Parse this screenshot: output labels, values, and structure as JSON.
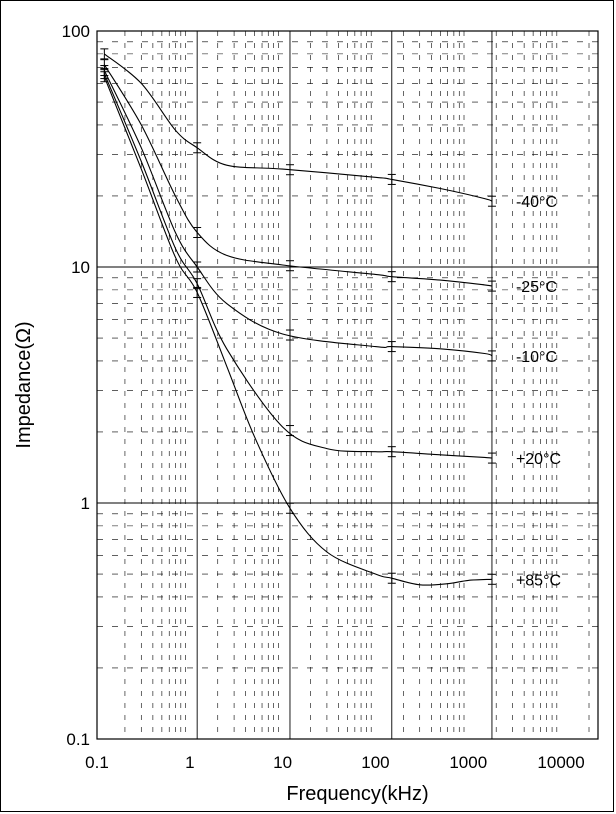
{
  "chart_data": {
    "type": "line",
    "title": "",
    "xlabel": "Frequency(kHz)",
    "ylabel": "Impedance(Ω)",
    "xscale": "log",
    "yscale": "log",
    "xlim": [
      0.1,
      25000
    ],
    "ylim": [
      0.1,
      100
    ],
    "x_ticks": [
      {
        "value": 0.1,
        "label": "0.1"
      },
      {
        "value": 1,
        "label": "1"
      },
      {
        "value": 10,
        "label": "10"
      },
      {
        "value": 100,
        "label": "100"
      },
      {
        "value": 1000,
        "label": "1000"
      },
      {
        "value": 10000,
        "label": "10000"
      }
    ],
    "y_ticks": [
      {
        "value": 0.1,
        "label": "0.1"
      },
      {
        "value": 1,
        "label": "1"
      },
      {
        "value": 10,
        "label": "10"
      },
      {
        "value": 100,
        "label": "100"
      }
    ],
    "grid": "dashed minor, solid major",
    "series": [
      {
        "name": "-40°C",
        "x": [
          0.12,
          0.3,
          0.7,
          1.2,
          2.5,
          10,
          100,
          150,
          500,
          1500,
          1800
        ],
        "y": [
          80,
          60,
          38,
          32,
          27,
          26,
          24,
          23.5,
          21.5,
          19.5,
          19
        ]
      },
      {
        "name": "-25°C",
        "x": [
          0.12,
          0.3,
          0.7,
          1.2,
          2.5,
          10,
          100,
          150,
          500,
          1500,
          1800
        ],
        "y": [
          72,
          40,
          20,
          14,
          11.2,
          10.2,
          9.3,
          9.1,
          8.8,
          8.4,
          8.3
        ]
      },
      {
        "name": "-10°C",
        "x": [
          0.12,
          0.3,
          0.7,
          1.2,
          2.5,
          10,
          100,
          150,
          500,
          1500,
          1800
        ],
        "y": [
          68,
          32,
          14,
          10,
          7,
          5.2,
          4.6,
          4.6,
          4.5,
          4.3,
          4.2
        ]
      },
      {
        "name": "+20°C",
        "x": [
          0.12,
          0.3,
          0.7,
          1.2,
          2.5,
          10,
          30,
          100,
          150,
          500,
          1500,
          1800
        ],
        "y": [
          66,
          28,
          12,
          8.5,
          4.5,
          2.1,
          1.7,
          1.65,
          1.65,
          1.6,
          1.56,
          1.55
        ]
      },
      {
        "name": "+85°C",
        "x": [
          0.12,
          0.3,
          0.7,
          1.2,
          2.5,
          5,
          12,
          30,
          100,
          150,
          300,
          600,
          1000,
          1800
        ],
        "y": [
          64,
          26,
          11,
          7.8,
          3.8,
          1.9,
          0.95,
          0.62,
          0.5,
          0.48,
          0.45,
          0.455,
          0.47,
          0.475
        ]
      }
    ],
    "error_bar_x": [
      0.12,
      1.2,
      12,
      150,
      1800
    ]
  }
}
